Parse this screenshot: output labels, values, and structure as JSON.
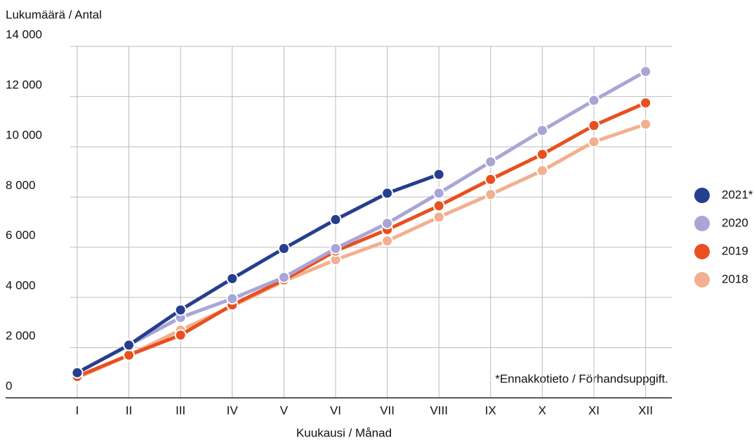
{
  "chart_data": {
    "type": "line",
    "y_label": "Lukumäärä / Antal",
    "x_label": "Kuukausi / Månad",
    "annotation": "*Ennakkotieto / Förhandsuppgift.",
    "categories": [
      "I",
      "II",
      "III",
      "IV",
      "V",
      "VI",
      "VII",
      "VIII",
      "IX",
      "X",
      "XI",
      "XII"
    ],
    "series": [
      {
        "name": "2021*",
        "color": "#253f8e",
        "values": [
          1000,
          2100,
          3500,
          4750,
          5950,
          7100,
          8150,
          8900,
          null,
          null,
          null,
          null
        ]
      },
      {
        "name": "2020",
        "color": "#a8a6d6",
        "values": [
          1000,
          2100,
          3200,
          3950,
          4800,
          5950,
          6950,
          8150,
          9400,
          10650,
          11850,
          13000
        ]
      },
      {
        "name": "2019",
        "color": "#e9501f",
        "values": [
          850,
          1700,
          2500,
          3700,
          4700,
          5850,
          6700,
          7650,
          8700,
          9700,
          10850,
          11750
        ]
      },
      {
        "name": "2018",
        "color": "#f2b08f",
        "values": [
          800,
          1700,
          2700,
          3650,
          4650,
          5500,
          6250,
          7200,
          8100,
          9050,
          10200,
          10900
        ]
      }
    ],
    "ylim": [
      0,
      14000
    ],
    "yticks": [
      0,
      {
        "value": 2000,
        "label": "2 000"
      },
      {
        "value": 4000,
        "label": "4 000"
      },
      {
        "value": 6000,
        "label": "6 000"
      },
      {
        "value": 8000,
        "label": "8 000"
      },
      {
        "value": 10000,
        "label": "10 000"
      },
      {
        "value": 12000,
        "label": "12 000"
      },
      {
        "value": 14000,
        "label": "14 000"
      }
    ],
    "grid": true,
    "legend": "right"
  }
}
